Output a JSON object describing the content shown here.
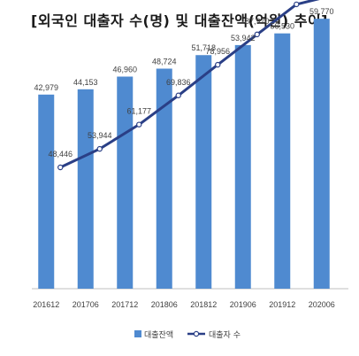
{
  "chart_data": {
    "type": "bar",
    "title": "[외국인 대출자 수(명) 및 대출잔액(억원) 추이]",
    "categories": [
      "201612",
      "201706",
      "201712",
      "201806",
      "201812",
      "201906",
      "201912",
      "202006"
    ],
    "series": [
      {
        "name": "대출잔액",
        "type": "bar",
        "values": [
          42979,
          44153,
          46960,
          48724,
          51718,
          53942,
          56530,
          59770
        ],
        "labels": [
          "42,979",
          "44,153",
          "46,960",
          "48,724",
          "51,718",
          "53,942",
          "56,530",
          "59,770"
        ]
      },
      {
        "name": "대출자 수",
        "type": "line",
        "values": [
          48446,
          53944,
          61177,
          69836,
          78956,
          87970,
          96916,
          99787
        ],
        "labels": [
          "48,446",
          "53,944",
          "61,177",
          "69,836",
          "78,956",
          "87,970",
          "96,916",
          "99,787"
        ]
      }
    ],
    "colors": {
      "bar": "#4f8ad0",
      "line": "#2a3f86",
      "marker_fill": "#ffffff",
      "axis": "#bfbfbf"
    },
    "legend_position": "bottom",
    "grid": false
  }
}
